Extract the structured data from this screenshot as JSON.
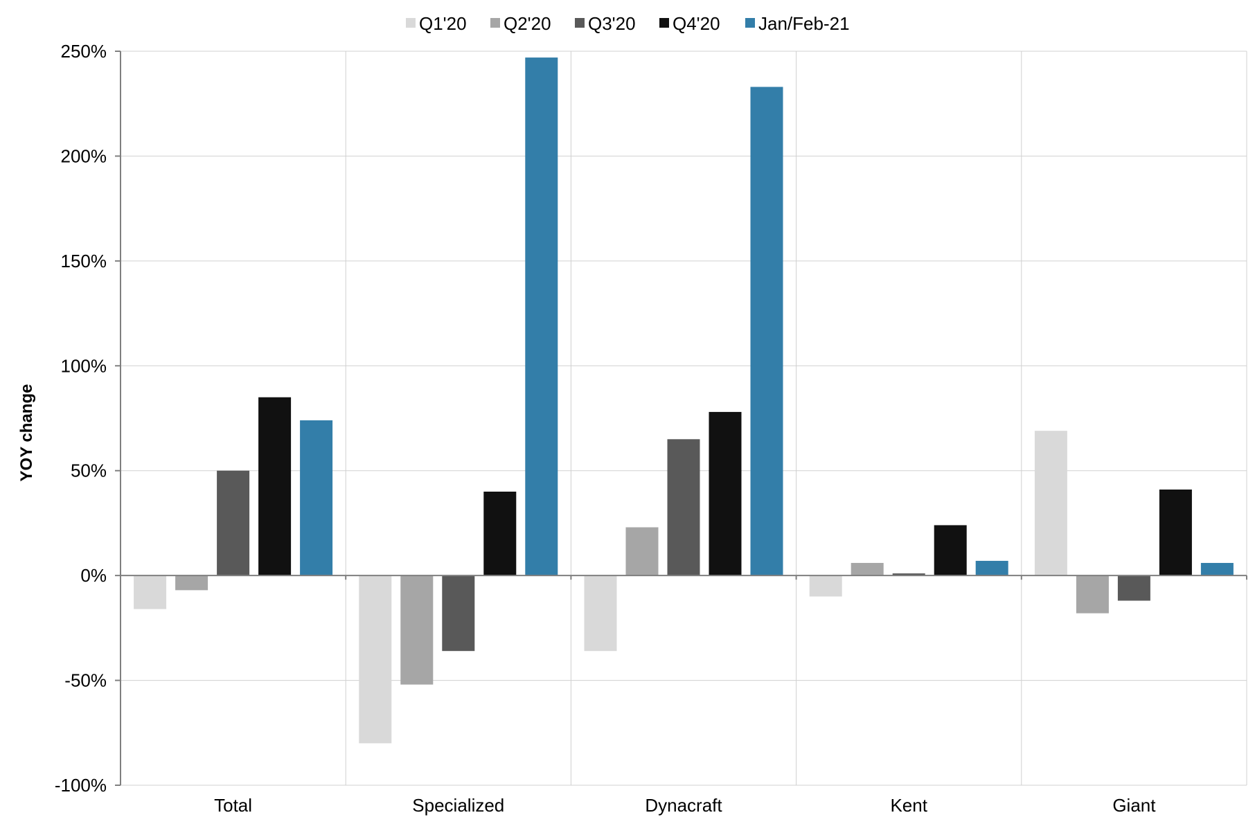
{
  "chart_data": {
    "type": "bar",
    "title": "",
    "xlabel": "",
    "ylabel": "YOY change",
    "ylim": [
      -100,
      250
    ],
    "y_unit": "%",
    "y_ticks": [
      250,
      200,
      150,
      100,
      50,
      0,
      -50,
      -100
    ],
    "y_tick_labels": [
      "250%",
      "200%",
      "150%",
      "100%",
      "50%",
      "0%",
      "-50%",
      "-100%"
    ],
    "categories": [
      "Total",
      "Specialized",
      "Dynacraft",
      "Kent",
      "Giant"
    ],
    "series": [
      {
        "name": "Q1'20",
        "color": "#d9d9d9",
        "values": [
          -16,
          -80,
          -36,
          -10,
          69
        ]
      },
      {
        "name": "Q2'20",
        "color": "#a6a6a6",
        "values": [
          -7,
          -52,
          23,
          6,
          -18
        ]
      },
      {
        "name": "Q3'20",
        "color": "#595959",
        "values": [
          50,
          -36,
          65,
          1,
          -12
        ]
      },
      {
        "name": "Q4'20",
        "color": "#111111",
        "values": [
          85,
          40,
          78,
          24,
          41
        ]
      },
      {
        "name": "Jan/Feb-21",
        "color": "#337ea9",
        "values": [
          74,
          247,
          233,
          7,
          6
        ]
      }
    ],
    "legend_position": "top",
    "grid": true
  }
}
